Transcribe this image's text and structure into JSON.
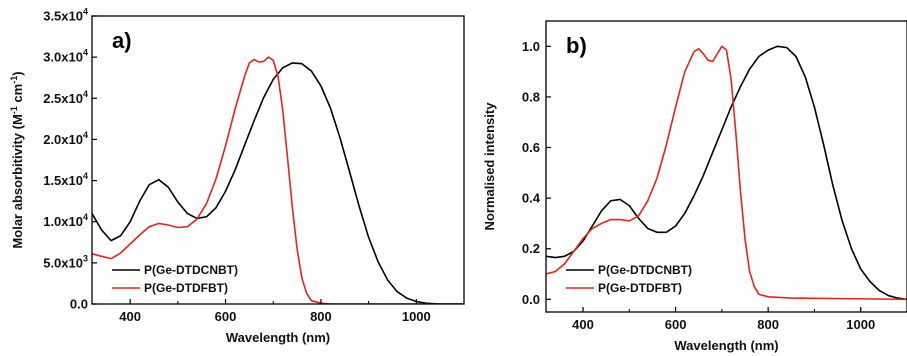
{
  "chart_data": [
    {
      "type": "line",
      "panel_label": "a)",
      "xlabel": "Wavelength (nm)",
      "ylabel_base": "Molar absorbitivity (M",
      "ylabel_sup1": "-1",
      "ylabel_mid": " cm",
      "ylabel_sup2": "-1",
      "ylabel_end": ")",
      "xlim": [
        320,
        1100
      ],
      "ylim": [
        0,
        35000
      ],
      "xticks": [
        {
          "v": 400,
          "label": "400"
        },
        {
          "v": 600,
          "label": "600"
        },
        {
          "v": 800,
          "label": "800"
        },
        {
          "v": 1000,
          "label": "1000"
        }
      ],
      "yticks": [
        {
          "v": 0,
          "base": "0.0",
          "exp": ""
        },
        {
          "v": 5000,
          "base": "5.0x10",
          "exp": "3"
        },
        {
          "v": 10000,
          "base": "1.0x10",
          "exp": "4"
        },
        {
          "v": 15000,
          "base": "1.5x10",
          "exp": "4"
        },
        {
          "v": 20000,
          "base": "2.0x10",
          "exp": "4"
        },
        {
          "v": 25000,
          "base": "2.5x10",
          "exp": "4"
        },
        {
          "v": 30000,
          "base": "3.0x10",
          "exp": "4"
        },
        {
          "v": 35000,
          "base": "3.5x10",
          "exp": "4"
        }
      ],
      "legend_position": "bottom-left",
      "series": [
        {
          "name": "P(Ge-DTDCNBT)",
          "color": "#000000",
          "points": [
            [
              320,
              11000
            ],
            [
              340,
              9000
            ],
            [
              360,
              7700
            ],
            [
              380,
              8300
            ],
            [
              400,
              10000
            ],
            [
              420,
              12500
            ],
            [
              440,
              14500
            ],
            [
              460,
              15100
            ],
            [
              480,
              14200
            ],
            [
              500,
              12400
            ],
            [
              520,
              11000
            ],
            [
              540,
              10400
            ],
            [
              560,
              10600
            ],
            [
              580,
              11700
            ],
            [
              600,
              13700
            ],
            [
              620,
              16300
            ],
            [
              640,
              19300
            ],
            [
              660,
              22300
            ],
            [
              680,
              25100
            ],
            [
              700,
              27300
            ],
            [
              720,
              28700
            ],
            [
              740,
              29300
            ],
            [
              760,
              29200
            ],
            [
              780,
              28300
            ],
            [
              800,
              26500
            ],
            [
              820,
              23800
            ],
            [
              840,
              20200
            ],
            [
              860,
              16100
            ],
            [
              880,
              11900
            ],
            [
              900,
              8100
            ],
            [
              920,
              5100
            ],
            [
              940,
              2900
            ],
            [
              960,
              1500
            ],
            [
              980,
              700
            ],
            [
              1000,
              300
            ],
            [
              1020,
              100
            ],
            [
              1050,
              0
            ],
            [
              1100,
              0
            ]
          ]
        },
        {
          "name": "P(Ge-DTDFBT)",
          "color": "#e8231f",
          "points": [
            [
              320,
              6100
            ],
            [
              340,
              5800
            ],
            [
              360,
              5500
            ],
            [
              380,
              6200
            ],
            [
              400,
              7300
            ],
            [
              420,
              8400
            ],
            [
              440,
              9400
            ],
            [
              460,
              9800
            ],
            [
              480,
              9600
            ],
            [
              500,
              9300
            ],
            [
              520,
              9400
            ],
            [
              540,
              10300
            ],
            [
              560,
              12200
            ],
            [
              580,
              15200
            ],
            [
              600,
              19200
            ],
            [
              620,
              23700
            ],
            [
              640,
              27700
            ],
            [
              650,
              29300
            ],
            [
              660,
              29700
            ],
            [
              670,
              29400
            ],
            [
              680,
              29500
            ],
            [
              690,
              30000
            ],
            [
              700,
              29600
            ],
            [
              710,
              27700
            ],
            [
              720,
              23500
            ],
            [
              730,
              17800
            ],
            [
              740,
              11800
            ],
            [
              750,
              6700
            ],
            [
              760,
              3200
            ],
            [
              770,
              1300
            ],
            [
              780,
              400
            ],
            [
              800,
              100
            ],
            [
              820,
              0
            ],
            [
              1100,
              0
            ]
          ]
        }
      ]
    },
    {
      "type": "line",
      "panel_label": "b)",
      "xlabel": "Wavelength (nm)",
      "ylabel": "Normalised intensity",
      "xlim": [
        320,
        1100
      ],
      "ylim": [
        -0.05,
        1.1
      ],
      "xticks": [
        {
          "v": 400,
          "label": "400"
        },
        {
          "v": 600,
          "label": "600"
        },
        {
          "v": 800,
          "label": "800"
        },
        {
          "v": 1000,
          "label": "1000"
        }
      ],
      "yticks": [
        {
          "v": 0.0,
          "label": "0.0"
        },
        {
          "v": 0.2,
          "label": "0.2"
        },
        {
          "v": 0.4,
          "label": "0.4"
        },
        {
          "v": 0.6,
          "label": "0.6"
        },
        {
          "v": 0.8,
          "label": "0.8"
        },
        {
          "v": 1.0,
          "label": "1.0"
        }
      ],
      "legend_position": "bottom-left",
      "series": [
        {
          "name": "P(Ge-DTDCNBT)",
          "color": "#000000",
          "points": [
            [
              320,
              0.17
            ],
            [
              340,
              0.165
            ],
            [
              360,
              0.17
            ],
            [
              380,
              0.19
            ],
            [
              400,
              0.23
            ],
            [
              420,
              0.29
            ],
            [
              440,
              0.35
            ],
            [
              460,
              0.39
            ],
            [
              480,
              0.395
            ],
            [
              500,
              0.37
            ],
            [
              520,
              0.32
            ],
            [
              540,
              0.28
            ],
            [
              560,
              0.265
            ],
            [
              580,
              0.265
            ],
            [
              600,
              0.29
            ],
            [
              620,
              0.34
            ],
            [
              640,
              0.41
            ],
            [
              660,
              0.49
            ],
            [
              680,
              0.58
            ],
            [
              700,
              0.67
            ],
            [
              720,
              0.76
            ],
            [
              740,
              0.84
            ],
            [
              760,
              0.91
            ],
            [
              780,
              0.96
            ],
            [
              800,
              0.985
            ],
            [
              820,
              1.0
            ],
            [
              840,
              0.995
            ],
            [
              860,
              0.96
            ],
            [
              880,
              0.88
            ],
            [
              900,
              0.76
            ],
            [
              920,
              0.61
            ],
            [
              940,
              0.45
            ],
            [
              960,
              0.31
            ],
            [
              980,
              0.2
            ],
            [
              1000,
              0.12
            ],
            [
              1020,
              0.07
            ],
            [
              1040,
              0.035
            ],
            [
              1060,
              0.015
            ],
            [
              1080,
              0.005
            ],
            [
              1100,
              0.0
            ]
          ]
        },
        {
          "name": "P(Ge-DTDFBT)",
          "color": "#e8231f",
          "points": [
            [
              320,
              0.1
            ],
            [
              340,
              0.11
            ],
            [
              360,
              0.14
            ],
            [
              380,
              0.19
            ],
            [
              400,
              0.24
            ],
            [
              420,
              0.28
            ],
            [
              440,
              0.3
            ],
            [
              460,
              0.315
            ],
            [
              480,
              0.315
            ],
            [
              500,
              0.31
            ],
            [
              520,
              0.33
            ],
            [
              540,
              0.39
            ],
            [
              560,
              0.48
            ],
            [
              580,
              0.61
            ],
            [
              600,
              0.76
            ],
            [
              620,
              0.9
            ],
            [
              640,
              0.98
            ],
            [
              650,
              0.99
            ],
            [
              660,
              0.97
            ],
            [
              670,
              0.945
            ],
            [
              680,
              0.94
            ],
            [
              690,
              0.97
            ],
            [
              700,
              1.0
            ],
            [
              710,
              0.985
            ],
            [
              720,
              0.87
            ],
            [
              730,
              0.66
            ],
            [
              740,
              0.43
            ],
            [
              750,
              0.24
            ],
            [
              760,
              0.11
            ],
            [
              770,
              0.05
            ],
            [
              780,
              0.02
            ],
            [
              800,
              0.01
            ],
            [
              850,
              0.005
            ],
            [
              1100,
              0.0
            ]
          ]
        }
      ]
    }
  ]
}
